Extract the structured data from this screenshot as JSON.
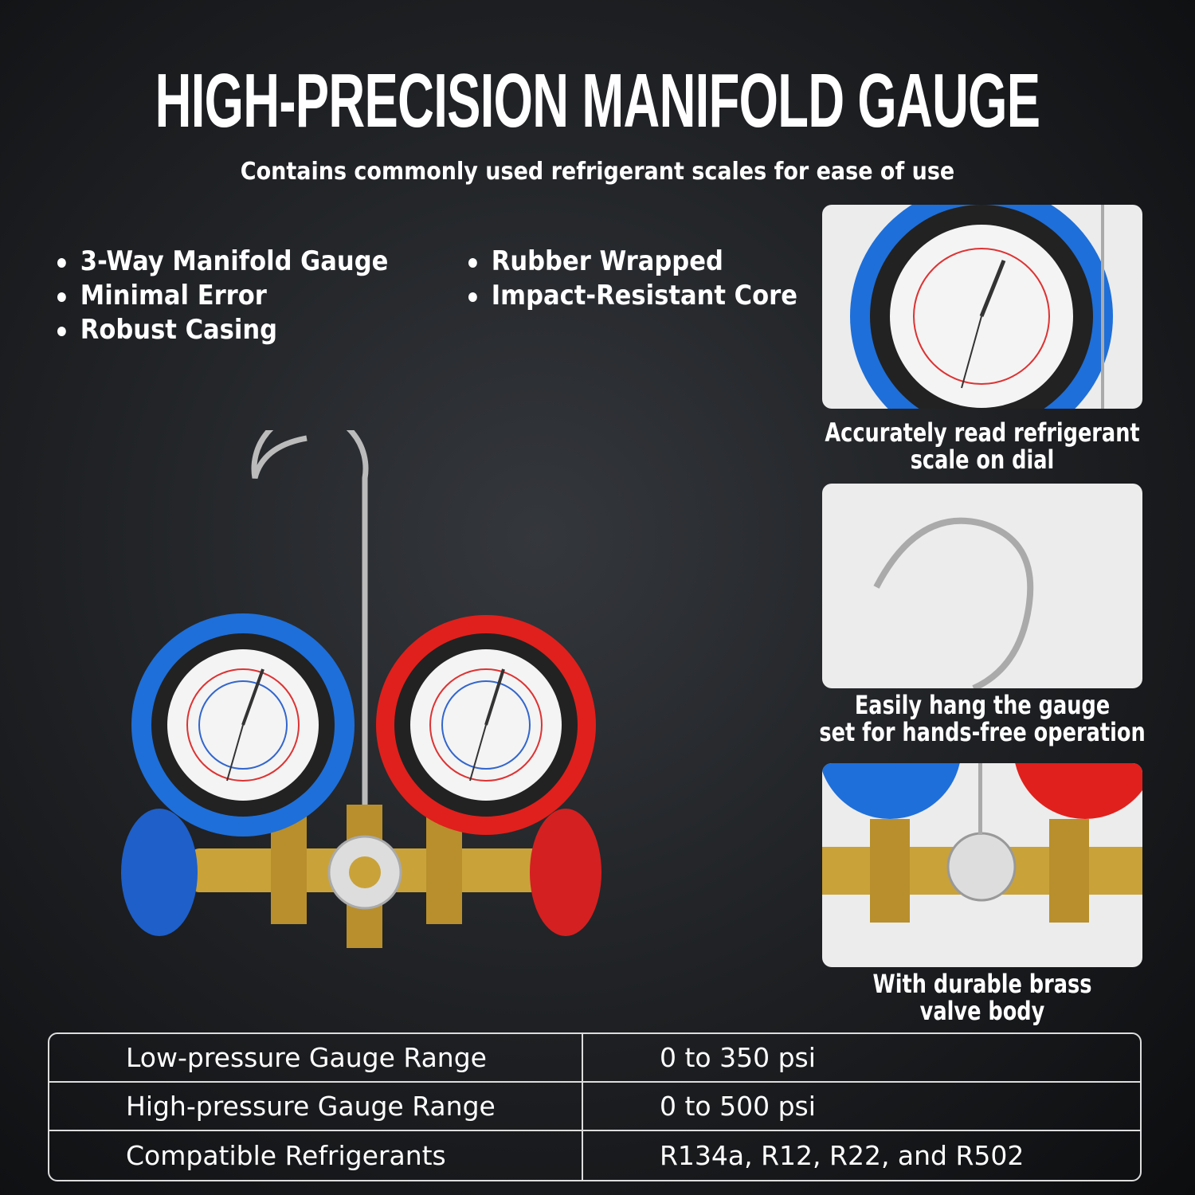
{
  "header": {
    "title": "HIGH-PRECISION MANIFOLD GAUGE",
    "subtitle": "Contains commonly used refrigerant scales for ease of use"
  },
  "features_left": [
    "3-Way Manifold Gauge",
    "Minimal Error",
    "Robust  Casing"
  ],
  "features_right": [
    "Rubber Wrapped",
    "Impact-Resistant Core"
  ],
  "panels": [
    {
      "caption_1": "Accurately read refrigerant",
      "caption_2": "scale on dial"
    },
    {
      "caption_1": "Easily hang the gauge",
      "caption_2": "set for hands-free operation"
    },
    {
      "caption_1": "With durable brass",
      "caption_2": "valve body"
    }
  ],
  "specs": [
    {
      "label": "Low-pressure Gauge Range",
      "value": "0 to 350 psi"
    },
    {
      "label": "High-pressure Gauge Range",
      "value": "0 to 500 psi"
    },
    {
      "label": "Compatible Refrigerants",
      "value": "R134a, R12, R22, and R502"
    }
  ],
  "colors": {
    "low_side": "#1e6fd9",
    "high_side": "#e0201c",
    "brass": "#c9a23a"
  }
}
